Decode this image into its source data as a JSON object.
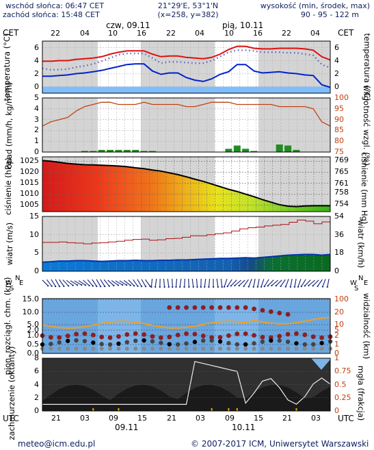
{
  "header": {
    "sunrise": "wschód słońca: 06:47 CET",
    "sunset": "zachód słońca: 15:48 CET",
    "coords": "21°29'E, 53°1'N",
    "grid": "(x=258, y=382)",
    "elev_title": "wysokość (min, środek, max)",
    "elev_values": "90 - 95 - 122 m",
    "tz_left": "CET",
    "tz_right": "CET",
    "day1": "czw, 09.11",
    "day2": "pią, 10.11",
    "top_hours": [
      "22",
      "04",
      "10",
      "16",
      "22",
      "04",
      "10",
      "16",
      "22",
      "04"
    ]
  },
  "axes": {
    "temp": {
      "left": "temperatura (°C)",
      "right": "temperatura (°C)",
      "ticks": [
        "6",
        "4",
        "2",
        "0"
      ]
    },
    "precip": {
      "left": "opad (mm/h, kg/m²/h)",
      "right": "wilgotność wzgl. (%)",
      "left_ticks": [
        "5",
        "4",
        "3",
        "2",
        "1",
        "0"
      ],
      "right_ticks": [
        "100",
        "95",
        "90",
        "85",
        "80",
        "75"
      ]
    },
    "pressure": {
      "left": "ciśnienie (hPa)",
      "right": "ciśnienie (mm Hg)",
      "left_ticks": [
        "1025",
        "1020",
        "1015",
        "1010",
        "1005"
      ],
      "right_ticks": [
        "769",
        "765",
        "761",
        "758",
        "754"
      ]
    },
    "wind": {
      "left": "wiatr (m/s)",
      "right": "wiatr (km/h)",
      "left_ticks": [
        "15",
        "10",
        "5",
        "0"
      ],
      "right_ticks": [
        "54",
        "36",
        "18",
        "0"
      ]
    },
    "winddir": {
      "left_n": "N",
      "left_w": "W",
      "left_s": "S",
      "left_e": "E",
      "right_n": "N",
      "right_w": "W",
      "right_s": "S",
      "right_e": "E"
    },
    "clouds": {
      "left": "pion. rozciągł. chm. (km)",
      "right": "widzialność (km)",
      "left_ticks": [
        "15.0",
        "10.0",
        "5.0",
        "2.0",
        "1.0",
        "0.5",
        "0.0"
      ],
      "right_ticks": [
        "100",
        "20",
        "10",
        "5",
        "2",
        "1",
        "0"
      ]
    },
    "cover": {
      "left": "zachmurzenie (oktanty)",
      "right": "mgła (frakcja)",
      "left_ticks": [
        "8",
        "6",
        "4",
        "2",
        "0"
      ],
      "right_ticks": [
        "1",
        "0.75",
        "0.5",
        "0.25",
        "0"
      ]
    }
  },
  "footer": {
    "tz_left": "UTC",
    "tz_right": "UTC",
    "hours": [
      "21",
      "03",
      "09",
      "15",
      "21",
      "03",
      "09",
      "15",
      "21",
      "03"
    ],
    "date1": "09.11",
    "date2": "10.11",
    "email": "meteo@icm.edu.pl",
    "copyright": "© 2007-2017 ICM, Uniwersytet Warszawski"
  },
  "chart_data": [
    {
      "type": "line",
      "title": "temperatura",
      "ylim": [
        -1,
        7
      ],
      "series": [
        {
          "values": [
            3.9,
            3.9,
            4.0,
            4.0,
            4.2,
            4.3,
            4.4,
            4.6,
            5.0,
            5.3,
            5.5,
            5.5,
            5.5,
            5.0,
            4.6,
            4.7,
            4.7,
            4.5,
            4.4,
            4.3,
            4.5,
            5.0,
            5.7,
            6.2,
            6.2,
            5.9,
            5.8,
            5.8,
            5.9,
            5.9,
            5.9,
            5.8,
            5.6,
            4.6,
            4.1
          ]
        },
        {
          "values": [
            2.8,
            2.6,
            2.6,
            2.7,
            3.0,
            3.2,
            3.5,
            3.9,
            4.4,
            4.9,
            5.1,
            5.1,
            5.1,
            4.4,
            3.6,
            3.8,
            3.8,
            3.7,
            3.6,
            3.6,
            4.0,
            4.6,
            5.3,
            5.6,
            5.6,
            5.5,
            5.3,
            5.3,
            5.3,
            5.2,
            5.2,
            5.0,
            4.8,
            3.4,
            2.9
          ]
        },
        {
          "values": [
            1.6,
            1.6,
            1.7,
            1.8,
            2.0,
            2.1,
            2.3,
            2.5,
            2.8,
            3.1,
            3.4,
            3.5,
            3.5,
            2.4,
            1.9,
            2.1,
            2.1,
            1.4,
            1.0,
            0.8,
            1.2,
            1.9,
            2.3,
            3.4,
            3.4,
            2.4,
            2.1,
            2.2,
            2.3,
            2.1,
            2.0,
            1.8,
            1.7,
            0.3,
            -0.1
          ]
        }
      ]
    },
    {
      "type": "line",
      "title": "opad / wilgotność",
      "ylim": [
        0,
        5
      ],
      "series": [
        {
          "values": [
            87,
            89,
            90,
            91,
            94,
            96,
            97,
            98,
            98,
            97,
            97,
            97,
            98,
            97,
            97,
            97,
            97,
            96,
            96,
            97,
            98,
            98,
            98,
            97,
            97,
            97,
            97,
            97,
            96,
            96,
            96,
            96,
            95,
            89,
            87
          ]
        },
        {
          "values": [
            0,
            0,
            0,
            0,
            0,
            0.1,
            0.1,
            0.2,
            0.2,
            0.2,
            0.2,
            0.2,
            0.1,
            0.1,
            0,
            0,
            0,
            0,
            0,
            0,
            0,
            0,
            0.3,
            0.6,
            0.3,
            0.1,
            0,
            0,
            0.7,
            0.6,
            0.2,
            0,
            0,
            0,
            0
          ]
        }
      ]
    },
    {
      "type": "area",
      "title": "ciśnienie",
      "ylim": [
        1002,
        1027
      ],
      "series": [
        {
          "values": [
            1025.3,
            1025.0,
            1024.5,
            1024.0,
            1023.7,
            1023.4,
            1023.3,
            1023.2,
            1023.0,
            1022.8,
            1022.5,
            1022.0,
            1021.6,
            1021.0,
            1020.5,
            1019.7,
            1018.9,
            1017.9,
            1016.8,
            1015.8,
            1014.6,
            1013.4,
            1012.2,
            1011.2,
            1010.0,
            1008.8,
            1007.5,
            1006.3,
            1005.2,
            1004.5,
            1004.3,
            1004.6,
            1004.7,
            1004.7,
            1004.7
          ]
        }
      ]
    },
    {
      "type": "line",
      "title": "wiatr",
      "ylim": [
        0,
        15
      ],
      "series": [
        {
          "values": [
            7.9,
            7.9,
            8.0,
            7.8,
            7.7,
            7.5,
            7.7,
            7.8,
            8.0,
            8.2,
            8.5,
            8.7,
            8.8,
            8.5,
            8.6,
            8.9,
            9.0,
            9.3,
            9.7,
            9.7,
            10.0,
            10.3,
            10.5,
            11.0,
            11.6,
            11.9,
            12.1,
            12.4,
            12.6,
            12.8,
            13.4,
            14.0,
            13.7,
            13.0,
            13.5
          ]
        },
        {
          "values": [
            2.5,
            2.6,
            2.8,
            2.8,
            2.9,
            2.9,
            2.8,
            2.7,
            2.8,
            2.9,
            2.9,
            3.0,
            2.9,
            2.9,
            3.0,
            3.0,
            3.1,
            3.1,
            3.2,
            3.3,
            3.4,
            3.5,
            3.5,
            3.6,
            3.7,
            3.6,
            3.8,
            4.0,
            4.2,
            4.4,
            4.5,
            4.6,
            4.6,
            4.4,
            4.6
          ]
        }
      ]
    },
    {
      "type": "scatter",
      "title": "chmury / widzialność",
      "ylim": [
        0,
        15
      ]
    },
    {
      "type": "area",
      "title": "zachmurzenie / mgła",
      "ylim": [
        0,
        8
      ]
    }
  ],
  "colors": {
    "night_bg": "#d4d4d4",
    "day_bg": "#ffffff",
    "temp_max": "#dd1010",
    "temp_mean": "#6060c0",
    "temp_min": "#0022cc",
    "temp_freeze": "#7fbfff",
    "humidity": "#c04010",
    "precip": "#228b22",
    "pressure_line": "#000000",
    "wind_avg": "#0033aa",
    "wind_gust": "#aa1010",
    "arrow": "#203080",
    "cloud_bg": "#7db5e8",
    "cover_bg": "#303030"
  }
}
